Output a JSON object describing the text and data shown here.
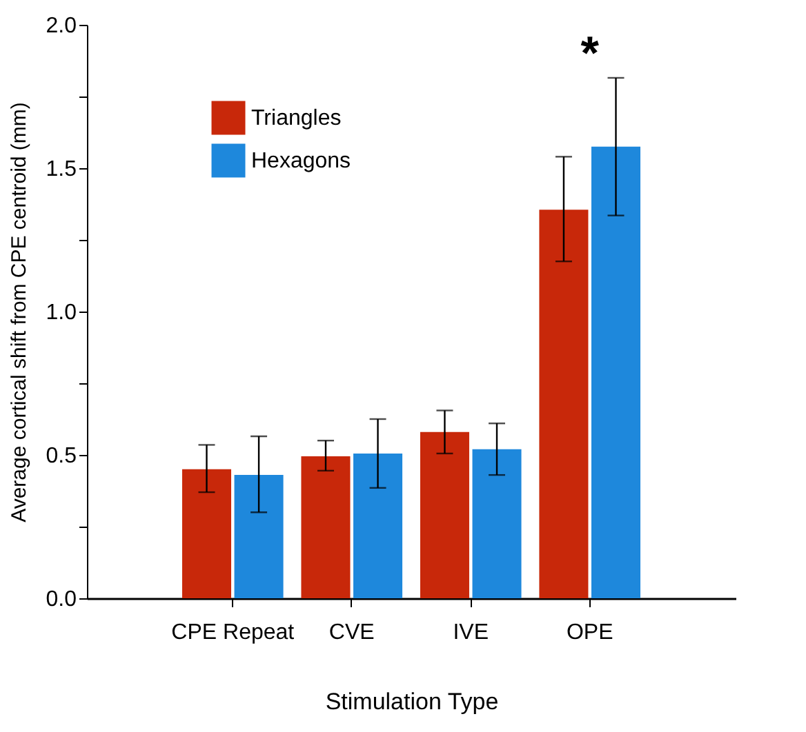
{
  "chart_data": {
    "type": "bar",
    "xlabel": "Stimulation Type",
    "ylabel": "Average cortical shift from CPE centroid (mm)",
    "categories": [
      "CPE Repeat",
      "CVE",
      "IVE",
      "OPE"
    ],
    "series": [
      {
        "name": "Triangles",
        "color": "#c8280a",
        "values": [
          0.45,
          0.495,
          0.58,
          1.355
        ],
        "errors": [
          [
            0.37,
            0.535
          ],
          [
            0.445,
            0.55
          ],
          [
            0.505,
            0.655
          ],
          [
            1.175,
            1.54
          ]
        ]
      },
      {
        "name": "Hexagons",
        "color": "#1e88dc",
        "values": [
          0.43,
          0.505,
          0.52,
          1.575
        ],
        "errors": [
          [
            0.3,
            0.565
          ],
          [
            0.385,
            0.625
          ],
          [
            0.43,
            0.61
          ],
          [
            1.335,
            1.815
          ]
        ]
      }
    ],
    "ylim": [
      0,
      2.0
    ],
    "yticks": [
      {
        "value": 0,
        "label": "0.0"
      },
      {
        "value": 0.25,
        "label": null
      },
      {
        "value": 0.5,
        "label": "0.5"
      },
      {
        "value": 0.75,
        "label": null
      },
      {
        "value": 1,
        "label": "1.0"
      },
      {
        "value": 1.25,
        "label": null
      },
      {
        "value": 1.5,
        "label": "1.5"
      },
      {
        "value": 1.75,
        "label": null
      },
      {
        "value": 2,
        "label": "2.0"
      }
    ],
    "annotations": [
      "*"
    ],
    "grid": false,
    "legend": "top left"
  }
}
